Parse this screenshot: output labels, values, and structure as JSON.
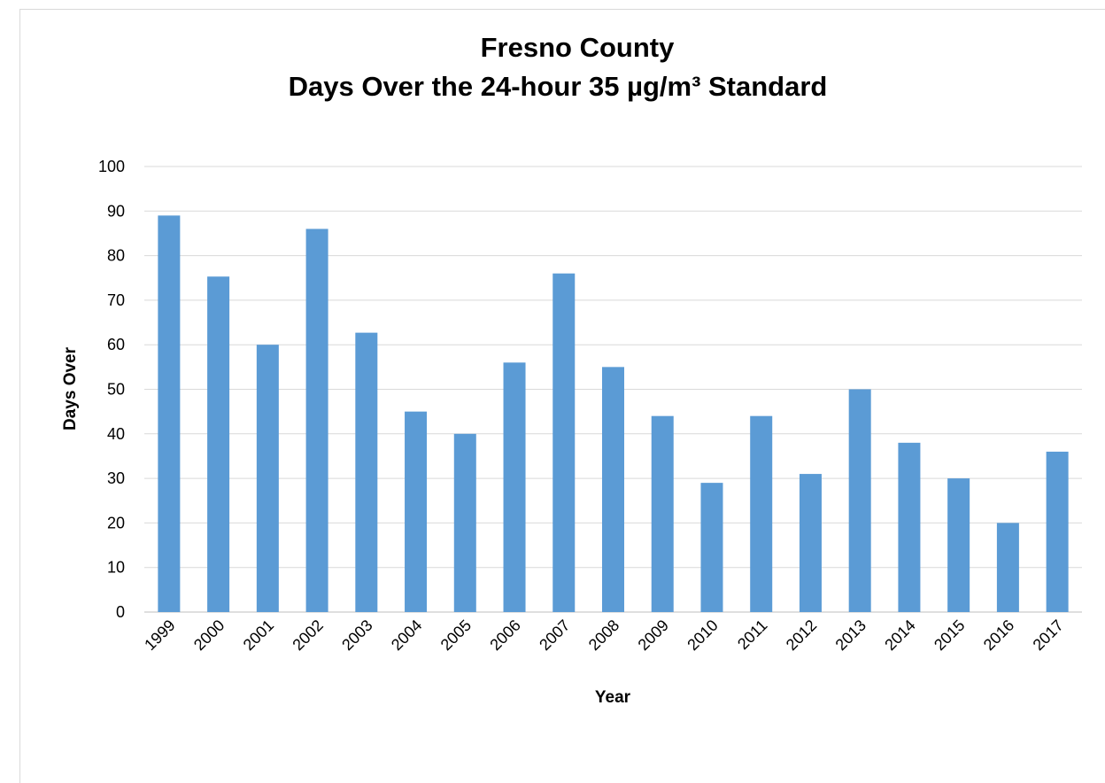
{
  "chart_data": {
    "type": "bar",
    "title": [
      "Fresno County",
      "Days Over the 24-hour 35 µg/m³ Standard"
    ],
    "x_label": "Year",
    "y_label": "Days Over",
    "categories": [
      "1999",
      "2000",
      "2001",
      "2002",
      "2003",
      "2004",
      "2005",
      "2006",
      "2007",
      "2008",
      "2009",
      "2010",
      "2011",
      "2012",
      "2013",
      "2014",
      "2015",
      "2016",
      "2017"
    ],
    "values": [
      89,
      75.3,
      60,
      86,
      62.7,
      45,
      40,
      56,
      76,
      55,
      44,
      29,
      44,
      31,
      50,
      38,
      30,
      20,
      36
    ],
    "color": "#5b9bd5",
    "ylim": [
      0,
      100
    ],
    "yticks": [
      0,
      10,
      20,
      30,
      40,
      50,
      60,
      70,
      80,
      90,
      100
    ],
    "grid": true
  }
}
